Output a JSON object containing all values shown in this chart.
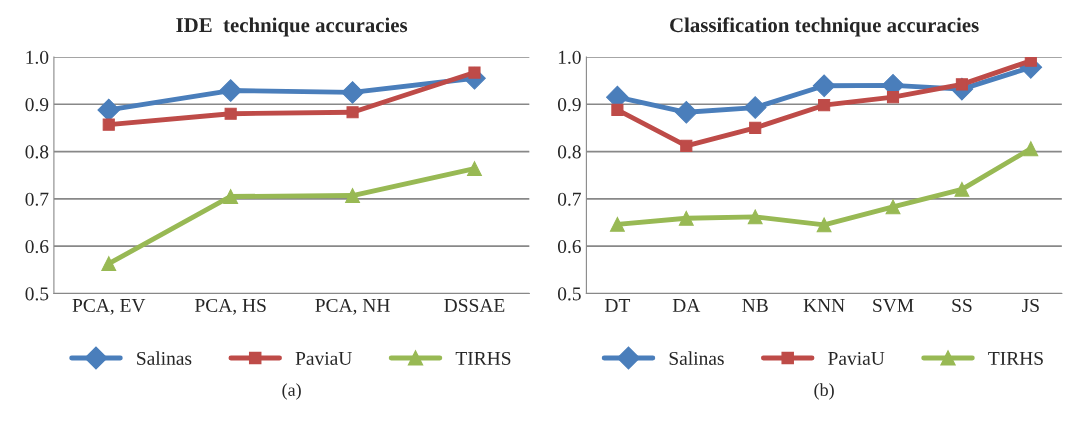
{
  "chart_data": [
    {
      "type": "line",
      "title": "IDE  technique accuracies",
      "categories": [
        "PCA, EV",
        "PCA, HS",
        "PCA, NH",
        "DSSAE"
      ],
      "series": [
        {
          "name": "Salinas",
          "color": "#4a7ebb",
          "marker": "diamond",
          "values": [
            0.888,
            0.929,
            0.925,
            0.955
          ]
        },
        {
          "name": "PaviaU",
          "color": "#be4b48",
          "marker": "square",
          "values": [
            0.857,
            0.88,
            0.883,
            0.967
          ]
        },
        {
          "name": "TIRHS",
          "color": "#98b954",
          "marker": "triangle",
          "values": [
            0.563,
            0.705,
            0.707,
            0.764
          ]
        }
      ],
      "ylim": [
        0.5,
        1.0
      ],
      "yticks": [
        {
          "value": 0.5,
          "label": "0.5"
        },
        {
          "value": 0.6,
          "label": "0.6"
        },
        {
          "value": 0.7,
          "label": "0.7"
        },
        {
          "value": 0.8,
          "label": "0.8"
        },
        {
          "value": 0.9,
          "label": "0.9"
        },
        {
          "value": 1.0,
          "label": "1.0"
        }
      ],
      "grid": "y",
      "legend": "bottom",
      "annotations": [
        "(a)"
      ]
    },
    {
      "type": "line",
      "title": "Classification technique accuracies",
      "categories": [
        "DT",
        "DA",
        "NB",
        "KNN",
        "SVM",
        "SS",
        "JS"
      ],
      "series": [
        {
          "name": "Salinas",
          "color": "#4a7ebb",
          "marker": "diamond",
          "values": [
            0.915,
            0.883,
            0.893,
            0.939,
            0.94,
            0.932,
            0.978
          ]
        },
        {
          "name": "PaviaU",
          "color": "#be4b48",
          "marker": "square",
          "values": [
            0.888,
            0.812,
            0.85,
            0.898,
            0.915,
            0.942,
            0.992
          ]
        },
        {
          "name": "TIRHS",
          "color": "#98b954",
          "marker": "triangle",
          "values": [
            0.646,
            0.659,
            0.662,
            0.645,
            0.683,
            0.72,
            0.806
          ]
        }
      ],
      "ylim": [
        0.5,
        1.0
      ],
      "yticks": [
        {
          "value": 0.5,
          "label": "0.5"
        },
        {
          "value": 0.6,
          "label": "0.6"
        },
        {
          "value": 0.7,
          "label": "0.7"
        },
        {
          "value": 0.8,
          "label": "0.8"
        },
        {
          "value": 0.9,
          "label": "0.9"
        },
        {
          "value": 1.0,
          "label": "1.0"
        }
      ],
      "grid": "y",
      "legend": "bottom",
      "annotations": [
        "(b)"
      ]
    }
  ]
}
